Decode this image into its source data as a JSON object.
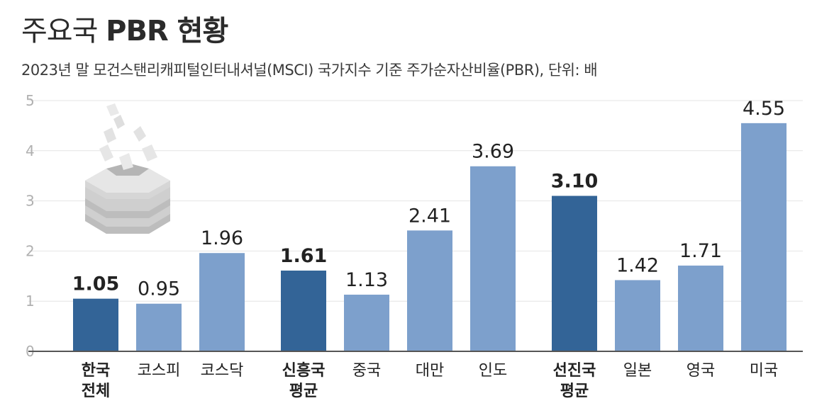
{
  "header": {
    "title_light": "주요국",
    "title_bold": "PBR 현황",
    "subtitle": "2023년 말 모건스탠리캐피털인터내셔널(MSCI) 국가지수 기준 주가순자산비율(PBR), 단위: 배"
  },
  "colors": {
    "dark_bar": "#336497",
    "light_bar": "#7da0cc",
    "grid": "#e4e4e4",
    "axis": "#555555"
  },
  "icon": "bull-market-steaming-rice-cake-icon",
  "chart_data": {
    "type": "bar",
    "title": "주요국 PBR 현황",
    "subtitle": "2023년 말 모건스탠리캐피털인터내셔널(MSCI) 국가지수 기준 주가순자산비율(PBR), 단위: 배",
    "ylim": [
      0,
      5
    ],
    "yticks": [
      0,
      1,
      2,
      3,
      4,
      5
    ],
    "grid": true,
    "values_format": "2 decimals",
    "bars": [
      {
        "category": "한국\n전체",
        "value": 1.05,
        "highlight": true
      },
      {
        "category": "코스피",
        "value": 0.95,
        "highlight": false
      },
      {
        "category": "코스닥",
        "value": 1.96,
        "highlight": false
      },
      {
        "category": "신흥국\n평균",
        "value": 1.61,
        "highlight": true
      },
      {
        "category": "중국",
        "value": 1.13,
        "highlight": false
      },
      {
        "category": "대만",
        "value": 2.41,
        "highlight": false
      },
      {
        "category": "인도",
        "value": 3.69,
        "highlight": false
      },
      {
        "category": "선진국\n평균",
        "value": 3.1,
        "highlight": true
      },
      {
        "category": "일본",
        "value": 1.42,
        "highlight": false
      },
      {
        "category": "영국",
        "value": 1.71,
        "highlight": false
      },
      {
        "category": "미국",
        "value": 4.55,
        "highlight": false
      }
    ]
  }
}
